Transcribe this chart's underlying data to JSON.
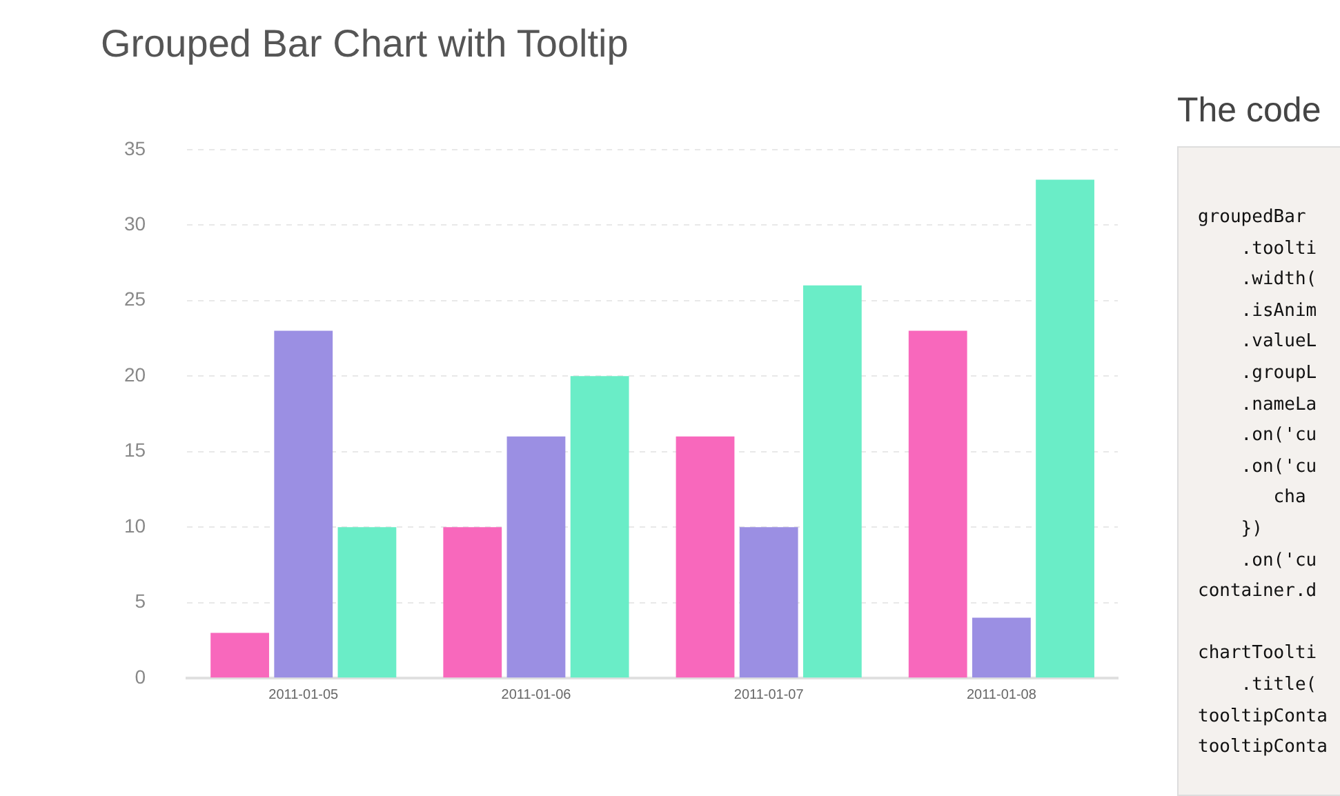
{
  "chart_data": {
    "type": "bar",
    "title": "Grouped Bar Chart with Tooltip",
    "categories": [
      "2011-01-05",
      "2011-01-06",
      "2011-01-07",
      "2011-01-08"
    ],
    "series": [
      {
        "color": "#f868bc",
        "values": [
          3,
          10,
          16,
          23
        ]
      },
      {
        "color": "#9b8fe3",
        "values": [
          23,
          16,
          10,
          4
        ]
      },
      {
        "color": "#6aedc7",
        "values": [
          10,
          20,
          26,
          33
        ]
      }
    ],
    "ylim": [
      0,
      35
    ],
    "yticks": [
      0,
      5,
      10,
      15,
      20,
      25,
      30,
      35
    ],
    "grid": "y",
    "legend": false,
    "annotations": [
      "The code",
      "groupedBar",
      "    .toolti",
      "    .width(",
      "    .isAnim",
      "    .valueL",
      "    .groupL",
      "    .nameLa",
      "    .on('cu",
      "    .on('cu",
      "       cha",
      "    })",
      "    .on('cu",
      "container.d",
      "chartToolti",
      "    .title(",
      "tooltipConta",
      "tooltipConta"
    ]
  }
}
